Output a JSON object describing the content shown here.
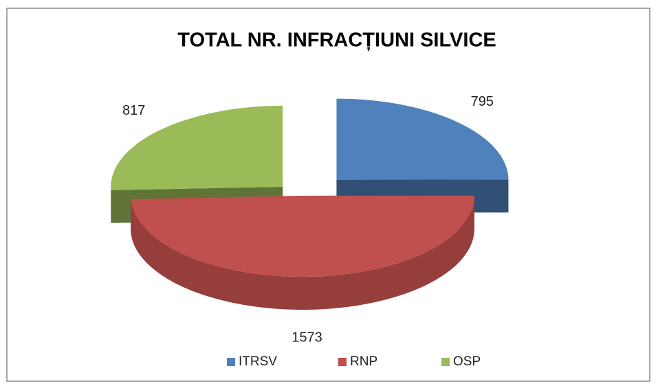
{
  "chart_data": {
    "type": "pie",
    "title": "TOTAL NR. INFRACȚIUNI SILVICE",
    "categories": [
      "ITRSV",
      "RNP",
      "OSP"
    ],
    "values": [
      795,
      1573,
      817
    ],
    "colors": [
      "#4f81bd",
      "#c0504d",
      "#9bbb59"
    ],
    "legend": "bottom"
  }
}
